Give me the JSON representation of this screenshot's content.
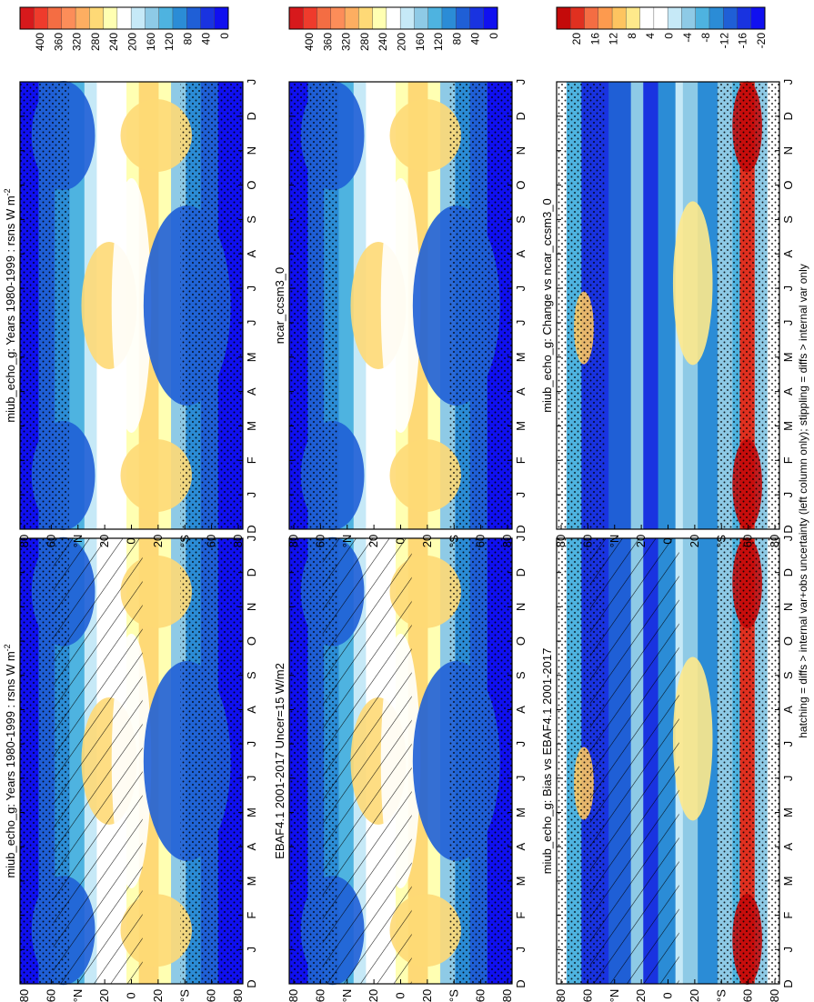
{
  "figure": {
    "footnote": "hatching = diffs > internal var+obs uncertainty (left column only); stippling = diffs > internal var only"
  },
  "chart_data": [
    {
      "type": "heatmap",
      "id": "p1",
      "title": "miub_echo_g: Years 1980-1999 : rsns W m",
      "title_sup": "-2",
      "x_ticks": [
        "D",
        "J",
        "F",
        "M",
        "A",
        "M",
        "J",
        "J",
        "A",
        "S",
        "O",
        "N",
        "D",
        "J"
      ],
      "y_ticks": [
        "80",
        "60",
        "°N",
        "20",
        "0",
        "20",
        "°S",
        "60",
        "80"
      ],
      "ylim": [
        -90,
        90
      ],
      "colorbar": [
        "400",
        "360",
        "320",
        "280",
        "240",
        "200",
        "160",
        "120",
        "80",
        "40",
        "0"
      ],
      "palette": "abs",
      "hatching": true,
      "stippling": true
    },
    {
      "type": "heatmap",
      "id": "p2",
      "title": "miub_echo_g: Years 1980-1999 : rsns W m",
      "title_sup": "-2",
      "x_ticks": [
        "D",
        "J",
        "F",
        "M",
        "A",
        "M",
        "J",
        "J",
        "A",
        "S",
        "O",
        "N",
        "D",
        "J"
      ],
      "y_ticks": [
        "80",
        "60",
        "°N",
        "20",
        "0",
        "20",
        "°S",
        "60",
        "80"
      ],
      "ylim": [
        -90,
        90
      ],
      "colorbar": [
        "400",
        "360",
        "320",
        "280",
        "240",
        "200",
        "160",
        "120",
        "80",
        "40",
        "0"
      ],
      "palette": "abs",
      "hatching": false,
      "stippling": true
    },
    {
      "type": "heatmap",
      "id": "p3",
      "title": "EBAF4.1 2001-2017 Uncer=15 W/m2",
      "title_sup": "",
      "x_ticks": [
        "D",
        "J",
        "F",
        "M",
        "A",
        "M",
        "J",
        "J",
        "A",
        "S",
        "O",
        "N",
        "D",
        "J"
      ],
      "y_ticks": [
        "80",
        "60",
        "°N",
        "20",
        "0",
        "20",
        "°S",
        "60",
        "80"
      ],
      "ylim": [
        -90,
        90
      ],
      "colorbar": [
        "400",
        "360",
        "320",
        "280",
        "240",
        "200",
        "160",
        "120",
        "80",
        "40",
        "0"
      ],
      "palette": "abs",
      "hatching": true,
      "stippling": true
    },
    {
      "type": "heatmap",
      "id": "p4",
      "title": "ncar_ccsm3_0",
      "title_sup": "",
      "x_ticks": [
        "D",
        "J",
        "F",
        "M",
        "A",
        "M",
        "J",
        "J",
        "A",
        "S",
        "O",
        "N",
        "D",
        "J"
      ],
      "y_ticks": [
        "80",
        "60",
        "°N",
        "20",
        "0",
        "20",
        "°S",
        "60",
        "80"
      ],
      "ylim": [
        -90,
        90
      ],
      "colorbar": [
        "400",
        "360",
        "320",
        "280",
        "240",
        "200",
        "160",
        "120",
        "80",
        "40",
        "0"
      ],
      "palette": "abs",
      "hatching": false,
      "stippling": true
    },
    {
      "type": "heatmap",
      "id": "p5",
      "title": "miub_echo_g: Bias vs EBAF4.1 2001-2017",
      "title_sup": "",
      "x_ticks": [
        "D",
        "J",
        "F",
        "M",
        "A",
        "M",
        "J",
        "J",
        "A",
        "S",
        "O",
        "N",
        "D",
        "J"
      ],
      "y_ticks": [
        "80",
        "60",
        "°N",
        "20",
        "0",
        "20",
        "°S",
        "60",
        "80"
      ],
      "ylim": [
        -90,
        90
      ],
      "colorbar": [
        "20",
        "16",
        "12",
        "8",
        "4",
        "0",
        "-4",
        "-8",
        "-12",
        "-16",
        "-20"
      ],
      "palette": "diff",
      "hatching": true,
      "stippling": true
    },
    {
      "type": "heatmap",
      "id": "p6",
      "title": "miub_echo_g: Change vs ncar_ccsm3_0",
      "title_sup": "",
      "x_ticks": [
        "D",
        "J",
        "F",
        "M",
        "A",
        "M",
        "J",
        "J",
        "A",
        "S",
        "O",
        "N",
        "D",
        "J"
      ],
      "y_ticks": [
        "80",
        "60",
        "°N",
        "20",
        "0",
        "20",
        "°S",
        "60",
        "80"
      ],
      "ylim": [
        -90,
        90
      ],
      "colorbar": [
        "20",
        "16",
        "12",
        "8",
        "4",
        "0",
        "-4",
        "-8",
        "-12",
        "-16",
        "-20"
      ],
      "palette": "diff",
      "hatching": false,
      "stippling": true
    }
  ]
}
